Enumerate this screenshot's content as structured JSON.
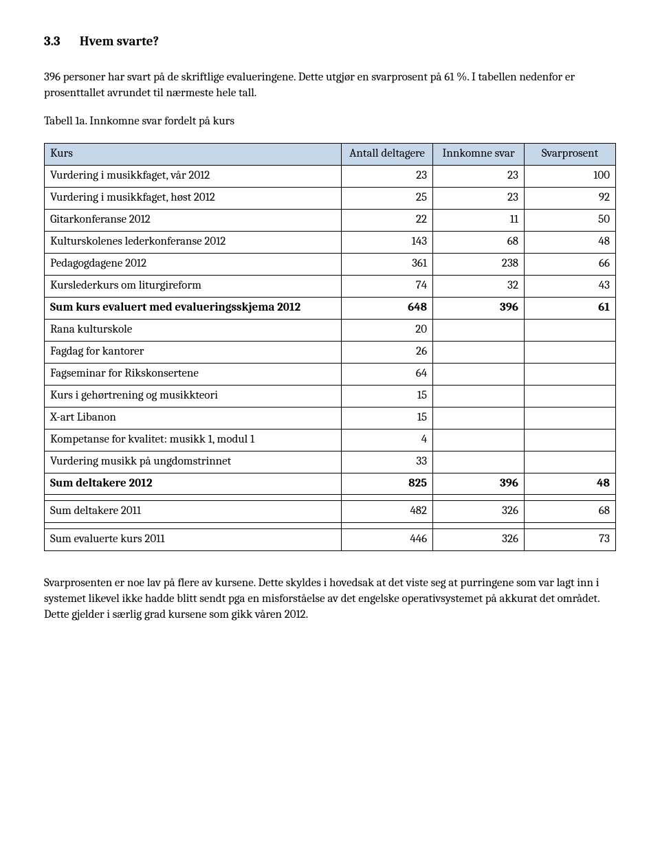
{
  "section": {
    "number": "3.3",
    "title": "Hvem svarte?"
  },
  "intro": "396 personer har svart på de skriftlige evalueringene. Dette utgjør en svarprosent på 61 %. I tabellen nedenfor er prosenttallet avrundet til nærmeste hele tall.",
  "caption": "Tabell 1a. Innkomne svar fordelt på kurs",
  "table": {
    "headers": [
      "Kurs",
      "Antall deltagere",
      "Innkomne svar",
      "Svarprosent"
    ],
    "header_bg": "#c7d7ea",
    "rows": [
      {
        "label": "Vurdering i musikkfaget, vår 2012",
        "c1": "23",
        "c2": "23",
        "c3": "100",
        "sum": false
      },
      {
        "label": "Vurdering i musikkfaget, høst 2012",
        "c1": "25",
        "c2": "23",
        "c3": "92",
        "sum": false
      },
      {
        "label": "Gitarkonferanse 2012",
        "c1": "22",
        "c2": "11",
        "c3": "50",
        "sum": false
      },
      {
        "label": "Kulturskolenes lederkonferanse 2012",
        "c1": "143",
        "c2": "68",
        "c3": "48",
        "sum": false
      },
      {
        "label": "Pedagogdagene 2012",
        "c1": "361",
        "c2": "238",
        "c3": "66",
        "sum": false
      },
      {
        "label": "Kurslederkurs om liturgireform",
        "c1": "74",
        "c2": "32",
        "c3": "43",
        "sum": false
      },
      {
        "label": "Sum kurs evaluert med evalueringsskjema 2012",
        "c1": "648",
        "c2": "396",
        "c3": "61",
        "sum": true
      },
      {
        "label": "Rana kulturskole",
        "c1": "20",
        "c2": "",
        "c3": "",
        "sum": false
      },
      {
        "label": "Fagdag for kantorer",
        "c1": "26",
        "c2": "",
        "c3": "",
        "sum": false
      },
      {
        "label": "Fagseminar for Rikskonsertene",
        "c1": "64",
        "c2": "",
        "c3": "",
        "sum": false
      },
      {
        "label": "Kurs i gehørtrening og musikkteori",
        "c1": "15",
        "c2": "",
        "c3": "",
        "sum": false
      },
      {
        "label": "X-art Libanon",
        "c1": "15",
        "c2": "",
        "c3": "",
        "sum": false
      },
      {
        "label": "Kompetanse for kvalitet: musikk 1, modul 1",
        "c1": "4",
        "c2": "",
        "c3": "",
        "sum": false
      },
      {
        "label": "Vurdering musikk på ungdomstrinnet",
        "c1": "33",
        "c2": "",
        "c3": "",
        "sum": false
      },
      {
        "label": "Sum deltakere 2012",
        "c1": "825",
        "c2": "396",
        "c3": "48",
        "sum": true
      },
      {
        "label": "",
        "c1": "",
        "c2": "",
        "c3": "",
        "sum": false
      },
      {
        "label": "Sum deltakere 2011",
        "c1": "482",
        "c2": "326",
        "c3": "68",
        "sum": false
      },
      {
        "label": "",
        "c1": "",
        "c2": "",
        "c3": "",
        "sum": false
      },
      {
        "label": "Sum evaluerte kurs 2011",
        "c1": "446",
        "c2": "326",
        "c3": "73",
        "sum": false
      }
    ],
    "col_widths": [
      "52%",
      "16%",
      "16%",
      "16%"
    ]
  },
  "post": "Svarprosenten er noe lav på flere av kursene. Dette skyldes i hovedsak at det viste seg at purringene som var lagt inn i systemet likevel ikke hadde blitt sendt pga en misforståelse av det engelske operativsystemet på akkurat det området. Dette gjelder i særlig grad kursene som gikk våren 2012."
}
